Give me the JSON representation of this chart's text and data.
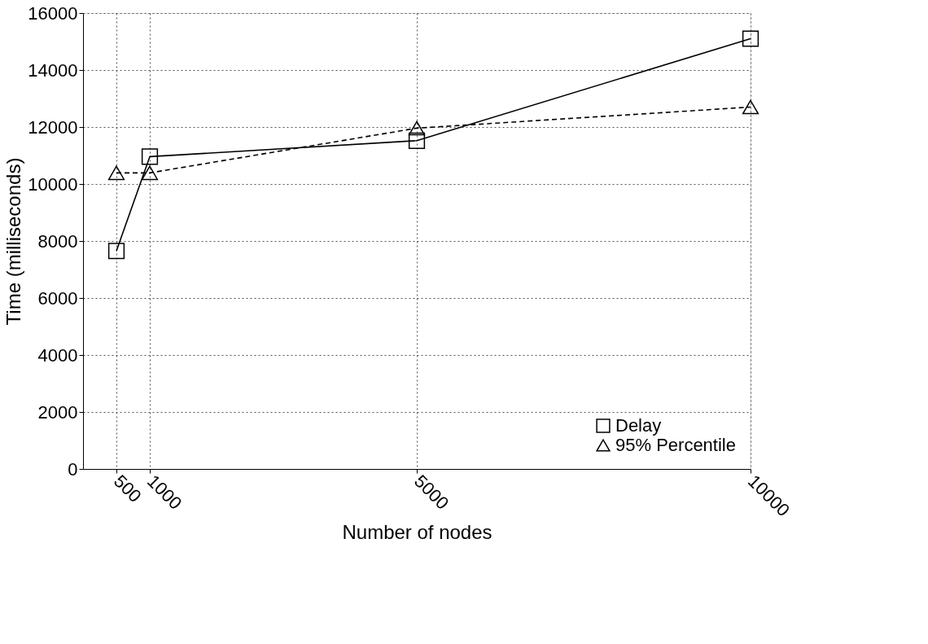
{
  "chart_data": {
    "type": "line",
    "xlabel": "Number of nodes",
    "ylabel": "Time (milliseconds)",
    "x": [
      500,
      1000,
      5000,
      10000
    ],
    "series": [
      {
        "name": "Delay",
        "color": "#000000",
        "marker": "square",
        "line_style": "solid",
        "values": [
          7650,
          10960,
          11520,
          15100
        ]
      },
      {
        "name": "95% Percentile",
        "color": "#000000",
        "marker": "triangle",
        "line_style": "dashed",
        "values": [
          10390,
          10390,
          11960,
          12700
        ]
      }
    ],
    "xlim": [
      0,
      10000
    ],
    "xticks": [
      500,
      1000,
      5000,
      10000
    ],
    "ylim": [
      0,
      16000
    ],
    "yticks": [
      0,
      2000,
      4000,
      6000,
      8000,
      10000,
      12000,
      14000,
      16000
    ],
    "grid": true,
    "legend": "bottom right"
  }
}
